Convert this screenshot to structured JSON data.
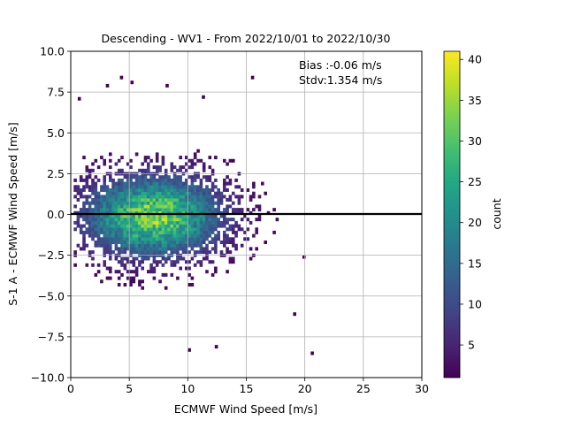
{
  "chart_data": {
    "type": "heatmap",
    "title": "Descending - WV1 - From 2022/10/01 to 2022/10/30",
    "xlabel": "ECMWF Wind Speed [m/s]",
    "ylabel": "S-1 A - ECMWF Wind Speed [m/s]",
    "xlim": [
      0,
      30
    ],
    "ylim": [
      -10,
      10
    ],
    "xticks": [
      "0",
      "5",
      "10",
      "15",
      "20",
      "25",
      "30"
    ],
    "yticks": [
      "−10.0",
      "−7.5",
      "−5.0",
      "−2.5",
      "0.0",
      "2.5",
      "5.0",
      "7.5",
      "10.0"
    ],
    "grid": true,
    "reference_line_y": 0,
    "annotation": {
      "bias": "Bias :-0.06 m/s",
      "stdv": "Stdv:1.354 m/s"
    },
    "colorbar": {
      "label": "count",
      "min": 1,
      "max": 41,
      "ticks": [
        "5",
        "10",
        "15",
        "20",
        "25",
        "30",
        "35",
        "40"
      ],
      "colormap": "viridis"
    },
    "distribution": {
      "center_x": 7,
      "center_y": -0.2,
      "peak_count": 41,
      "x_extent": [
        0.3,
        20.5
      ],
      "y_extent": [
        -8.6,
        8.4
      ]
    }
  }
}
